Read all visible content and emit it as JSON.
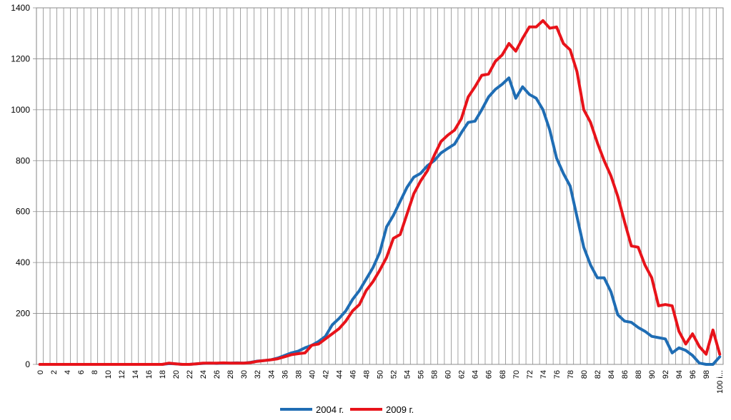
{
  "chart_data": {
    "type": "line",
    "title": "",
    "xlabel": "",
    "ylabel": "",
    "ylim": [
      0,
      1400
    ],
    "yticks": [
      "0",
      "200",
      "400",
      "600",
      "800",
      "1000",
      "1200",
      "1400"
    ],
    "x_tick_labels": [
      "0",
      "2",
      "4",
      "6",
      "8",
      "10",
      "12",
      "14",
      "16",
      "18",
      "20",
      "22",
      "24",
      "26",
      "28",
      "30",
      "32",
      "34",
      "36",
      "38",
      "40",
      "42",
      "44",
      "46",
      "48",
      "50",
      "52",
      "54",
      "56",
      "58",
      "60",
      "62",
      "64",
      "66",
      "68",
      "70",
      "72",
      "74",
      "76",
      "78",
      "80",
      "82",
      "84",
      "86",
      "88",
      "90",
      "92",
      "94",
      "96",
      "98",
      "100 i..."
    ],
    "grid": "vertical-and-horizontal",
    "legend_position": "bottom",
    "series": [
      {
        "name": "2004 г.",
        "color": "#1f6db4",
        "values": [
          0,
          0,
          0,
          0,
          0,
          0,
          0,
          0,
          0,
          0,
          0,
          0,
          0,
          0,
          0,
          0,
          0,
          0,
          0,
          3,
          2,
          0,
          0,
          2,
          4,
          5,
          4,
          5,
          5,
          6,
          5,
          8,
          13,
          15,
          18,
          25,
          35,
          45,
          52,
          65,
          75,
          90,
          110,
          155,
          180,
          210,
          255,
          290,
          335,
          380,
          440,
          540,
          585,
          640,
          695,
          735,
          750,
          780,
          800,
          830,
          848,
          865,
          910,
          950,
          955,
          1000,
          1050,
          1080,
          1100,
          1125,
          1045,
          1090,
          1060,
          1045,
          1000,
          920,
          810,
          750,
          700,
          580,
          460,
          390,
          340,
          340,
          285,
          195,
          170,
          165,
          145,
          130,
          110,
          105,
          100,
          45,
          65,
          55,
          35,
          5,
          0,
          0,
          30
        ]
      },
      {
        "name": "2009 г.",
        "color": "#e8131a",
        "values": [
          0,
          0,
          0,
          0,
          0,
          0,
          0,
          0,
          0,
          0,
          0,
          0,
          0,
          0,
          0,
          0,
          0,
          0,
          0,
          5,
          2,
          0,
          0,
          2,
          5,
          5,
          5,
          6,
          5,
          5,
          5,
          7,
          12,
          15,
          18,
          22,
          30,
          38,
          42,
          45,
          75,
          80,
          100,
          120,
          140,
          170,
          210,
          235,
          290,
          325,
          370,
          420,
          495,
          510,
          590,
          670,
          720,
          760,
          820,
          875,
          900,
          920,
          965,
          1050,
          1090,
          1135,
          1140,
          1190,
          1215,
          1260,
          1230,
          1280,
          1325,
          1325,
          1350,
          1320,
          1325,
          1260,
          1235,
          1150,
          1000,
          950,
          870,
          800,
          740,
          660,
          560,
          465,
          460,
          390,
          340,
          230,
          235,
          230,
          130,
          80,
          120,
          70,
          40,
          135,
          40
        ]
      }
    ]
  }
}
